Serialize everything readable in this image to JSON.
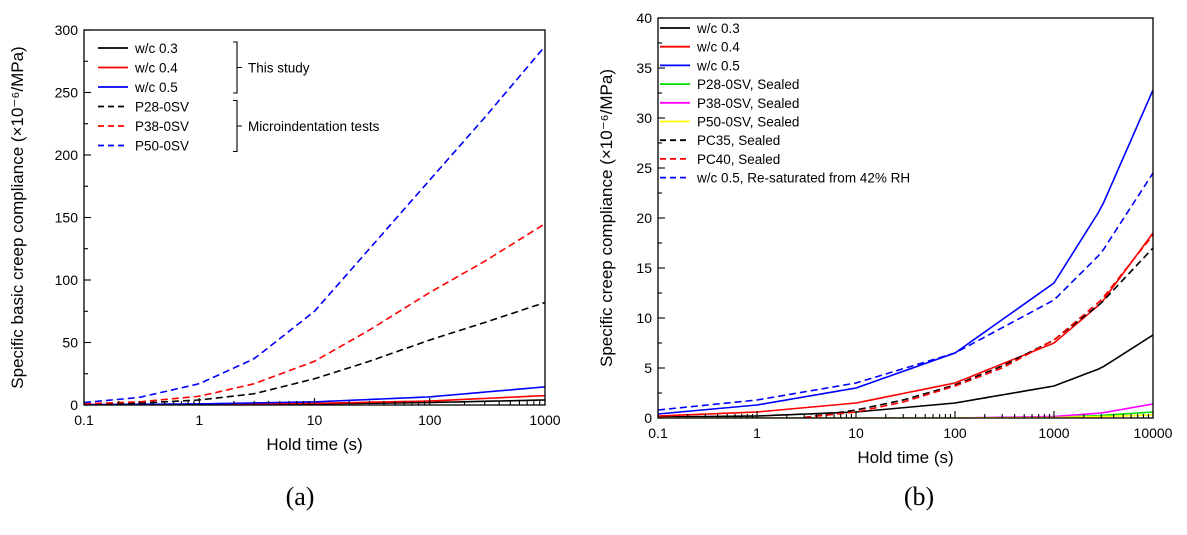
{
  "chart_data": [
    {
      "type": "line",
      "caption": "(a)",
      "xlabel": "Hold time (s)",
      "ylabel": "Specific basic creep compliance (×10⁻⁶/MPa)",
      "xscale": "log",
      "xlim": [
        0.1,
        1000
      ],
      "ylim": [
        0,
        300
      ],
      "xticks": [
        0.1,
        1,
        10,
        100,
        1000
      ],
      "xtick_labels": [
        "0.1",
        "1",
        "10",
        "100",
        "1000"
      ],
      "yticks": [
        0,
        50,
        100,
        150,
        200,
        250,
        300
      ],
      "ytick_labels": [
        "0",
        "50",
        "100",
        "150",
        "200",
        "250",
        "300"
      ],
      "legend_position": "top-left",
      "group_labels": [
        "This study",
        "Microindentation tests"
      ],
      "series": [
        {
          "name": "w/c 0.3",
          "color": "#000000",
          "dash": "solid",
          "group": 0,
          "x": [
            0.1,
            1,
            10,
            100,
            1000
          ],
          "y": [
            0.1,
            0.3,
            0.9,
            2.0,
            4.0
          ]
        },
        {
          "name": "w/c 0.4",
          "color": "#ff0000",
          "dash": "solid",
          "group": 0,
          "x": [
            0.1,
            1,
            10,
            100,
            1000
          ],
          "y": [
            0.2,
            0.5,
            1.3,
            3.2,
            7.5
          ]
        },
        {
          "name": "w/c 0.5",
          "color": "#0000ff",
          "dash": "solid",
          "group": 0,
          "x": [
            0.1,
            1,
            10,
            100,
            1000
          ],
          "y": [
            0.3,
            0.9,
            2.5,
            6.5,
            14.5
          ]
        },
        {
          "name": "P28-0SV",
          "color": "#000000",
          "dash": "dashed",
          "group": 1,
          "x": [
            0.1,
            0.3,
            1,
            3,
            10,
            30,
            100,
            300,
            1000
          ],
          "y": [
            0.5,
            1.5,
            4,
            9,
            21,
            35,
            52,
            66,
            82
          ]
        },
        {
          "name": "P38-0SV",
          "color": "#ff0000",
          "dash": "dashed",
          "group": 1,
          "x": [
            0.1,
            0.3,
            1,
            3,
            10,
            30,
            100,
            300,
            1000
          ],
          "y": [
            1,
            2.5,
            7,
            17,
            35,
            60,
            90,
            115,
            145
          ]
        },
        {
          "name": "P50-0SV",
          "color": "#0000ff",
          "dash": "dashed",
          "group": 1,
          "x": [
            0.1,
            0.3,
            1,
            3,
            10,
            30,
            100,
            300,
            1000
          ],
          "y": [
            2,
            6,
            17,
            37,
            75,
            125,
            180,
            230,
            287
          ]
        }
      ]
    },
    {
      "type": "line",
      "caption": "(b)",
      "xlabel": "Hold time (s)",
      "ylabel": "Specific creep compliance (×10⁻⁶/MPa)",
      "xscale": "log",
      "xlim": [
        0.1,
        10000
      ],
      "ylim": [
        0,
        40
      ],
      "xticks": [
        0.1,
        1,
        10,
        100,
        1000,
        10000
      ],
      "xtick_labels": [
        "0.1",
        "1",
        "10",
        "100",
        "1000",
        "10000"
      ],
      "yticks": [
        0,
        5,
        10,
        15,
        20,
        25,
        30,
        35,
        40
      ],
      "ytick_labels": [
        "0",
        "5",
        "10",
        "15",
        "20",
        "25",
        "30",
        "35",
        "40"
      ],
      "legend_position": "top-left",
      "series": [
        {
          "name": "w/c 0.3",
          "color": "#000000",
          "dash": "solid",
          "x": [
            0.1,
            1,
            10,
            100,
            1000,
            3000,
            10000
          ],
          "y": [
            0.1,
            0.2,
            0.6,
            1.5,
            3.2,
            5.0,
            8.3
          ]
        },
        {
          "name": "w/c 0.4",
          "color": "#ff0000",
          "dash": "solid",
          "x": [
            0.1,
            1,
            10,
            100,
            1000,
            3000,
            10000
          ],
          "y": [
            0.2,
            0.6,
            1.5,
            3.5,
            7.5,
            11.5,
            18.5
          ]
        },
        {
          "name": "w/c 0.5",
          "color": "#0000ff",
          "dash": "solid",
          "x": [
            0.1,
            1,
            10,
            100,
            1000,
            3000,
            10000
          ],
          "y": [
            0.4,
            1.3,
            3.0,
            6.5,
            13.5,
            21.0,
            32.8
          ]
        },
        {
          "name": "P28-0SV, Sealed",
          "color": "#00dd00",
          "dash": "solid",
          "x": [
            0.1,
            100,
            1000,
            3000,
            10000
          ],
          "y": [
            0,
            0,
            0.05,
            0.25,
            0.6
          ]
        },
        {
          "name": "P38-0SV, Sealed",
          "color": "#ff00ff",
          "dash": "solid",
          "x": [
            0.1,
            100,
            1000,
            3000,
            10000
          ],
          "y": [
            0,
            0,
            0.15,
            0.5,
            1.4
          ]
        },
        {
          "name": "P50-0SV, Sealed",
          "color": "#ffff00",
          "dash": "solid",
          "x": [
            0.1,
            100,
            1000,
            3000,
            10000
          ],
          "y": [
            0,
            0,
            0.05,
            0.15,
            0.3
          ]
        },
        {
          "name": "PC35, Sealed",
          "color": "#000000",
          "dash": "dashed",
          "x": [
            3,
            10,
            30,
            100,
            300,
            1000,
            3000,
            10000
          ],
          "y": [
            0.05,
            0.8,
            1.8,
            3.3,
            5.2,
            7.8,
            11.5,
            17.0
          ]
        },
        {
          "name": "PC40, Sealed",
          "color": "#ff0000",
          "dash": "dashed",
          "x": [
            3,
            10,
            30,
            100,
            300,
            1000,
            3000,
            10000
          ],
          "y": [
            0.05,
            0.6,
            1.6,
            3.2,
            5.0,
            7.8,
            11.8,
            18.3
          ]
        },
        {
          "name": "w/c 0.5, Re-saturated from 42% RH",
          "color": "#0000ff",
          "dash": "dashed",
          "x": [
            0.1,
            1,
            10,
            100,
            1000,
            3000,
            10000
          ],
          "y": [
            0.8,
            1.8,
            3.5,
            6.5,
            11.8,
            16.5,
            24.5
          ]
        }
      ]
    }
  ]
}
